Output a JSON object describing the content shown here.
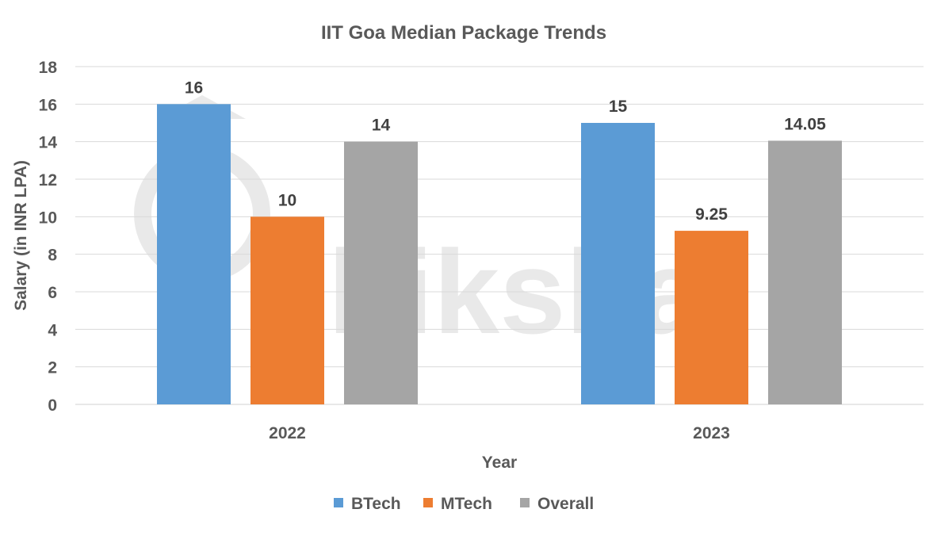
{
  "chart_data": {
    "type": "bar",
    "title": "IIT Goa Median Package Trends",
    "xlabel": "Year",
    "ylabel": "Salary (in INR LPA)",
    "categories": [
      "2022",
      "2023"
    ],
    "series": [
      {
        "name": "BTech",
        "values": [
          16,
          15
        ],
        "color": "#5B9BD5",
        "labels": [
          "16",
          "15"
        ]
      },
      {
        "name": "MTech",
        "values": [
          10,
          9.25
        ],
        "color": "#ED7D31",
        "labels": [
          "10",
          "9.25"
        ]
      },
      {
        "name": "Overall",
        "values": [
          14,
          14.05
        ],
        "color": "#A5A5A5",
        "labels": [
          "14",
          "14.05"
        ]
      }
    ],
    "ylim": [
      0,
      18
    ],
    "yticks": [
      "0",
      "2",
      "4",
      "6",
      "8",
      "10",
      "12",
      "14",
      "16",
      "18"
    ],
    "grid": true,
    "legend": "bottom",
    "watermark": "shiksha"
  }
}
